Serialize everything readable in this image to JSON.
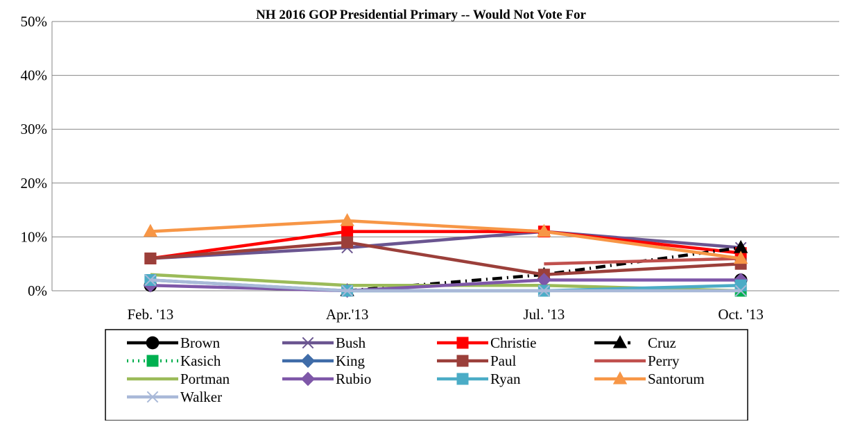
{
  "chart_data": {
    "type": "line",
    "title": "NH 2016 GOP Presidential Primary -- Would Not Vote For",
    "xlabel": "",
    "ylabel": "",
    "categories": [
      "Feb. '13",
      "Apr.'13",
      "Jul. '13",
      "Oct. '13"
    ],
    "ylim": [
      0,
      50
    ],
    "yticks": [
      0,
      10,
      20,
      30,
      40,
      50
    ],
    "ytick_labels": [
      "0%",
      "10%",
      "20%",
      "30%",
      "40%",
      "50%"
    ],
    "grid": true,
    "legend_position": "bottom",
    "series": [
      {
        "name": "Brown",
        "color": "#000000",
        "marker": "circle",
        "dash": "solid",
        "values": [
          1,
          null,
          null,
          2
        ]
      },
      {
        "name": "Bush",
        "color": "#6A5590",
        "marker": "x",
        "dash": "solid",
        "values": [
          6,
          8,
          11,
          8
        ]
      },
      {
        "name": "Christie",
        "color": "#FF0000",
        "marker": "square",
        "dash": "solid",
        "values": [
          6,
          11,
          11,
          7
        ]
      },
      {
        "name": "Cruz",
        "color": "#000000",
        "marker": "triangle",
        "dash": "dashdot",
        "values": [
          null,
          0,
          3,
          8
        ]
      },
      {
        "name": "Kasich",
        "color": "#00B050",
        "marker": "square",
        "dash": "dot",
        "values": [
          null,
          null,
          null,
          0
        ]
      },
      {
        "name": "King",
        "color": "#3F6CA8",
        "marker": "diamond",
        "dash": "solid",
        "values": [
          null,
          null,
          null,
          null
        ]
      },
      {
        "name": "Paul",
        "color": "#9B3F3A",
        "marker": "square",
        "dash": "solid",
        "values": [
          6,
          9,
          3,
          5
        ]
      },
      {
        "name": "Perry",
        "color": "#C0504D",
        "marker": "none",
        "dash": "solid",
        "values": [
          null,
          null,
          5,
          6
        ]
      },
      {
        "name": "Portman",
        "color": "#9BBB59",
        "marker": "none",
        "dash": "solid",
        "values": [
          3,
          1,
          1,
          0
        ]
      },
      {
        "name": "Rubio",
        "color": "#7E57A8",
        "marker": "diamond",
        "dash": "solid",
        "values": [
          1,
          0,
          2,
          2
        ]
      },
      {
        "name": "Ryan",
        "color": "#4BACC6",
        "marker": "square",
        "dash": "solid",
        "values": [
          2,
          0,
          0,
          1
        ]
      },
      {
        "name": "Santorum",
        "color": "#F79646",
        "marker": "triangle",
        "dash": "solid",
        "values": [
          11,
          13,
          11,
          6
        ]
      },
      {
        "name": "Walker",
        "color": "#A9B9D8",
        "marker": "x",
        "dash": "solid",
        "values": [
          2,
          0,
          0,
          0
        ]
      }
    ]
  }
}
